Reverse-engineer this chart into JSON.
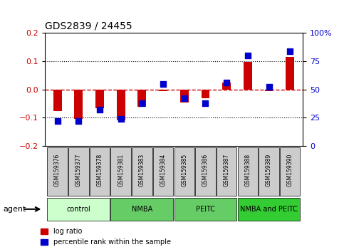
{
  "title": "GDS2839 / 24455",
  "samples": [
    "GSM159376",
    "GSM159377",
    "GSM159378",
    "GSM159381",
    "GSM159383",
    "GSM159384",
    "GSM159385",
    "GSM159386",
    "GSM159387",
    "GSM159388",
    "GSM159389",
    "GSM159390"
  ],
  "log_ratio": [
    -0.075,
    -0.103,
    -0.065,
    -0.11,
    -0.06,
    -0.005,
    -0.045,
    -0.03,
    0.025,
    0.097,
    -0.005,
    0.115
  ],
  "percentile_rank": [
    22,
    22,
    32,
    24,
    38,
    55,
    42,
    38,
    56,
    80,
    52,
    84
  ],
  "groups": [
    {
      "label": "control",
      "start": 0,
      "end": 3,
      "color": "#ccffcc"
    },
    {
      "label": "NMBA",
      "start": 3,
      "end": 6,
      "color": "#66cc66"
    },
    {
      "label": "PEITC",
      "start": 6,
      "end": 9,
      "color": "#66cc66"
    },
    {
      "label": "NMBA and PEITC",
      "start": 9,
      "end": 12,
      "color": "#33cc33"
    }
  ],
  "ylim_left": [
    -0.2,
    0.2
  ],
  "ylim_right": [
    0,
    100
  ],
  "yticks_left": [
    -0.2,
    -0.1,
    0.0,
    0.1,
    0.2
  ],
  "yticks_right": [
    0,
    25,
    50,
    75,
    100
  ],
  "ytick_labels_right": [
    "0",
    "25",
    "50",
    "75",
    "100%"
  ],
  "bar_color": "#cc0000",
  "dot_color": "#0000cc",
  "zero_line_color": "#cc0000",
  "grid_color": "#000000",
  "bg_color": "#ffffff",
  "plot_bg_color": "#ffffff",
  "sample_box_color": "#cccccc",
  "legend_bar_label": "log ratio",
  "legend_dot_label": "percentile rank within the sample",
  "agent_label": "agent"
}
